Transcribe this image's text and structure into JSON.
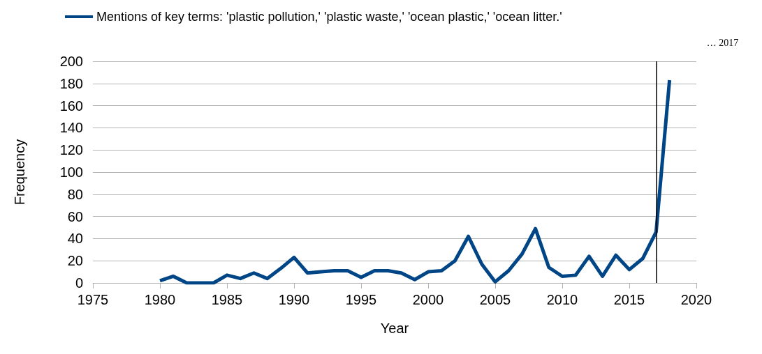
{
  "chart_data": {
    "type": "line",
    "xlabel": "Year",
    "ylabel": "Frequency",
    "x": [
      1980,
      1981,
      1982,
      1983,
      1984,
      1985,
      1986,
      1987,
      1988,
      1989,
      1990,
      1991,
      1992,
      1993,
      1994,
      1995,
      1996,
      1997,
      1998,
      1999,
      2000,
      2001,
      2002,
      2003,
      2004,
      2005,
      2006,
      2007,
      2008,
      2009,
      2010,
      2011,
      2012,
      2013,
      2014,
      2015,
      2016,
      2017,
      2018
    ],
    "series": [
      {
        "name": "Mentions of key terms: 'plastic pollution,' 'plastic waste,' 'ocean plastic,' 'ocean litter.'",
        "color": "#004586",
        "values": [
          2,
          6,
          0,
          0,
          0,
          7,
          4,
          9,
          4,
          13,
          23,
          9,
          10,
          11,
          11,
          5,
          11,
          11,
          9,
          3,
          10,
          11,
          20,
          42,
          17,
          1,
          11,
          26,
          49,
          14,
          6,
          7,
          24,
          6,
          25,
          12,
          22,
          46,
          183
        ]
      }
    ],
    "xlim": [
      1975,
      2020
    ],
    "xticks": [
      1975,
      1980,
      1985,
      1990,
      1995,
      2000,
      2005,
      2010,
      2015,
      2020
    ],
    "ylim": [
      0,
      200
    ],
    "yticks": [
      0,
      20,
      40,
      60,
      80,
      100,
      120,
      140,
      160,
      180,
      200
    ],
    "ref_lines": [
      {
        "axis": "x",
        "value": 2017,
        "label": "… 2017",
        "color": "#000000"
      }
    ],
    "grid": "y",
    "legend": "top left",
    "marker": "none",
    "line_style": "solid"
  }
}
